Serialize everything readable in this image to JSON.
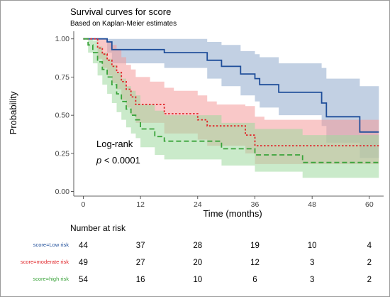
{
  "chart_data": {
    "type": "line",
    "subtype": "kaplan-meier-step",
    "title": "Survival curves for score",
    "subtitle": "Based on Kaplan-Meier estimates",
    "xlabel": "Time (months)",
    "ylabel": "Probability",
    "xlim": [
      -2,
      63
    ],
    "ylim": [
      -0.03,
      1.05
    ],
    "x_ticks": [
      0,
      12,
      24,
      36,
      48,
      60
    ],
    "y_ticks": [
      0,
      0.25,
      0.5,
      0.75,
      1.0
    ],
    "y_tick_labels": [
      "0.00",
      "0.25",
      "0.50",
      "0.75",
      "1.00"
    ],
    "grid": false,
    "annotation": {
      "line1": "Log-rank",
      "p_label": "p",
      "p_rest": " < 0.0001"
    },
    "series": [
      {
        "name": "score=Low risk",
        "color": "#1f4e9a",
        "band_color": "#8fa9cc",
        "line_style": "solid",
        "x": [
          0,
          3,
          5,
          6,
          17,
          26,
          29,
          33,
          36,
          37,
          41,
          50,
          51,
          56,
          57,
          58,
          61,
          62
        ],
        "y": [
          1.0,
          1.0,
          0.98,
          0.93,
          0.91,
          0.86,
          0.82,
          0.77,
          0.74,
          0.7,
          0.65,
          0.58,
          0.49,
          0.49,
          0.49,
          0.39,
          0.39,
          0.39
        ],
        "lower": [
          1.0,
          1.0,
          0.91,
          0.84,
          0.81,
          0.74,
          0.69,
          0.63,
          0.59,
          0.55,
          0.5,
          0.43,
          0.32,
          0.32,
          0.32,
          0.22,
          0.22,
          0.22
        ],
        "upper": [
          1.0,
          1.0,
          1.0,
          1.0,
          1.0,
          0.98,
          0.96,
          0.92,
          0.9,
          0.88,
          0.84,
          0.81,
          0.74,
          0.74,
          0.74,
          0.69,
          0.69,
          0.69
        ]
      },
      {
        "name": "score=moderate risk",
        "color": "#e0262a",
        "band_color": "#f49a9a",
        "line_style": "dotted",
        "x": [
          0,
          2,
          3,
          4,
          5,
          6,
          7,
          8,
          9,
          10,
          11,
          12,
          14,
          17,
          19,
          24,
          26,
          28,
          34,
          36,
          38,
          46,
          49,
          62
        ],
        "y": [
          1.0,
          1.0,
          0.94,
          0.9,
          0.86,
          0.82,
          0.78,
          0.72,
          0.67,
          0.62,
          0.57,
          0.57,
          0.57,
          0.51,
          0.51,
          0.47,
          0.43,
          0.43,
          0.37,
          0.3,
          0.3,
          0.3,
          0.3,
          0.3
        ],
        "lower": [
          1.0,
          1.0,
          0.87,
          0.81,
          0.76,
          0.71,
          0.67,
          0.6,
          0.55,
          0.5,
          0.45,
          0.45,
          0.45,
          0.38,
          0.38,
          0.34,
          0.3,
          0.3,
          0.25,
          0.18,
          0.18,
          0.18,
          0.18,
          0.18
        ],
        "upper": [
          1.0,
          1.0,
          1.0,
          1.0,
          0.98,
          0.96,
          0.93,
          0.88,
          0.83,
          0.8,
          0.75,
          0.75,
          0.72,
          0.68,
          0.66,
          0.63,
          0.59,
          0.57,
          0.56,
          0.49,
          0.47,
          0.47,
          0.47,
          0.47
        ]
      },
      {
        "name": "score=high risk",
        "color": "#3aa33a",
        "band_color": "#9fd89f",
        "line_style": "dashed",
        "x": [
          0,
          1,
          2,
          3,
          4,
          5,
          6,
          7,
          8,
          9,
          10,
          11,
          12,
          15,
          17,
          21,
          29,
          36,
          46,
          62
        ],
        "y": [
          1.0,
          0.96,
          0.91,
          0.85,
          0.8,
          0.75,
          0.7,
          0.64,
          0.59,
          0.54,
          0.5,
          0.47,
          0.41,
          0.36,
          0.33,
          0.33,
          0.28,
          0.24,
          0.19,
          0.19
        ],
        "lower": [
          1.0,
          0.91,
          0.84,
          0.76,
          0.7,
          0.64,
          0.58,
          0.52,
          0.47,
          0.42,
          0.38,
          0.35,
          0.29,
          0.24,
          0.21,
          0.21,
          0.17,
          0.13,
          0.09,
          0.09
        ],
        "upper": [
          1.0,
          1.0,
          0.99,
          0.95,
          0.91,
          0.87,
          0.83,
          0.78,
          0.74,
          0.69,
          0.66,
          0.63,
          0.57,
          0.53,
          0.5,
          0.5,
          0.45,
          0.41,
          0.37,
          0.37
        ]
      }
    ],
    "risk_table": {
      "title": "Number at risk",
      "times": [
        0,
        12,
        24,
        36,
        48,
        60
      ],
      "rows": [
        {
          "label": "score=Low risk",
          "color": "#1f4e9a",
          "values": [
            "44",
            "37",
            "28",
            "19",
            "10",
            "4"
          ]
        },
        {
          "label": "score=moderate risk",
          "color": "#e0262a",
          "values": [
            "49",
            "27",
            "20",
            "12",
            "3",
            "2"
          ]
        },
        {
          "label": "score=high risk",
          "color": "#3aa33a",
          "values": [
            "54",
            "16",
            "10",
            "6",
            "3",
            "2"
          ]
        }
      ]
    }
  }
}
